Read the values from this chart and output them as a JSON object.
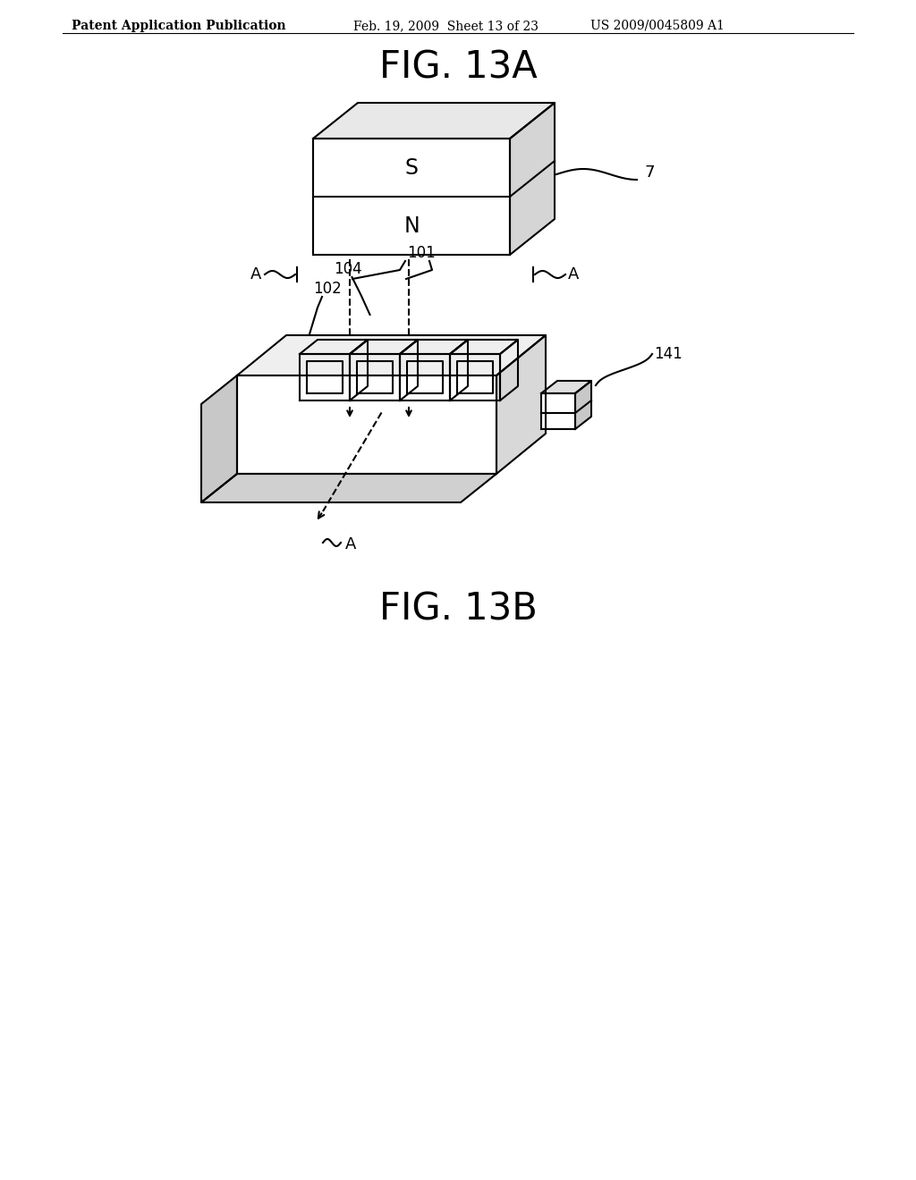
{
  "bg_color": "#ffffff",
  "line_color": "#000000",
  "header_left": "Patent Application Publication",
  "header_mid": "Feb. 19, 2009  Sheet 13 of 23",
  "header_right": "US 2009/0045809 A1",
  "fig13a_title": "FIG. 13A",
  "fig13b_title": "FIG. 13B",
  "font_size_header": 10,
  "font_size_fig": 30
}
